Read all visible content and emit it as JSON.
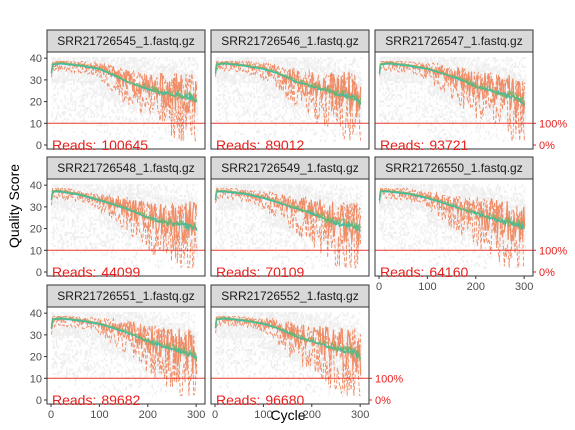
{
  "chart_data": {
    "type": "line",
    "xlabel": "Cycle",
    "ylabel": "Quality Score",
    "xlim": [
      0,
      310
    ],
    "ylim": [
      0,
      41
    ],
    "x_ticks": [
      0,
      100,
      200,
      300
    ],
    "y_ticks": [
      0,
      10,
      20,
      30,
      40
    ],
    "right_axis_labels": [
      "100%",
      "0%"
    ],
    "threshold_y": 10,
    "colors": {
      "mean": "#3CBFA2",
      "quartiles": "#F08C66",
      "median": "#7DB06A",
      "threshold": "#E8382E",
      "reads": "#E8201E",
      "heatmap": "#D9D9D9",
      "strip_bg": "#D9D9D9",
      "panel_border": "#333333"
    },
    "panels": [
      {
        "title": "SRR21726545_1.fastq.gz",
        "reads_label": "Reads:",
        "reads": "100645",
        "mean": [
          [
            1,
            33
          ],
          [
            3,
            37
          ],
          [
            20,
            37.5
          ],
          [
            60,
            36.5
          ],
          [
            100,
            35
          ],
          [
            130,
            32
          ],
          [
            170,
            28
          ],
          [
            200,
            26
          ],
          [
            230,
            24
          ],
          [
            260,
            23
          ],
          [
            290,
            22
          ],
          [
            300,
            20
          ]
        ]
      },
      {
        "title": "SRR21726546_1.fastq.gz",
        "reads_label": "Reads:",
        "reads": "89012",
        "mean": [
          [
            1,
            33
          ],
          [
            3,
            37
          ],
          [
            20,
            37.5
          ],
          [
            60,
            36.5
          ],
          [
            100,
            35
          ],
          [
            130,
            33
          ],
          [
            170,
            29
          ],
          [
            200,
            27
          ],
          [
            230,
            25
          ],
          [
            260,
            23
          ],
          [
            290,
            22
          ],
          [
            300,
            19
          ]
        ]
      },
      {
        "title": "SRR21726547_1.fastq.gz",
        "reads_label": "Reads:",
        "reads": "93721",
        "mean": [
          [
            1,
            33
          ],
          [
            3,
            37
          ],
          [
            20,
            37.5
          ],
          [
            60,
            36.5
          ],
          [
            100,
            35
          ],
          [
            130,
            33
          ],
          [
            170,
            30
          ],
          [
            200,
            27
          ],
          [
            230,
            25
          ],
          [
            260,
            23
          ],
          [
            290,
            21
          ],
          [
            300,
            19
          ]
        ]
      },
      {
        "title": "SRR21726548_1.fastq.gz",
        "reads_label": "Reads:",
        "reads": "44099",
        "mean": [
          [
            1,
            33
          ],
          [
            3,
            37
          ],
          [
            20,
            37
          ],
          [
            60,
            35.5
          ],
          [
            100,
            33
          ],
          [
            130,
            31
          ],
          [
            170,
            28
          ],
          [
            200,
            25
          ],
          [
            230,
            23
          ],
          [
            260,
            22
          ],
          [
            290,
            21
          ],
          [
            300,
            20
          ]
        ]
      },
      {
        "title": "SRR21726549_1.fastq.gz",
        "reads_label": "Reads:",
        "reads": "70109",
        "mean": [
          [
            1,
            33
          ],
          [
            3,
            37
          ],
          [
            20,
            37
          ],
          [
            60,
            36
          ],
          [
            100,
            34
          ],
          [
            130,
            32
          ],
          [
            170,
            29
          ],
          [
            200,
            27
          ],
          [
            230,
            24
          ],
          [
            260,
            22
          ],
          [
            290,
            21
          ],
          [
            300,
            20
          ]
        ]
      },
      {
        "title": "SRR21726550_1.fastq.gz",
        "reads_label": "Reads:",
        "reads": "64160",
        "mean": [
          [
            1,
            33
          ],
          [
            3,
            37
          ],
          [
            20,
            37
          ],
          [
            60,
            36
          ],
          [
            100,
            34
          ],
          [
            130,
            32
          ],
          [
            170,
            29
          ],
          [
            200,
            27
          ],
          [
            230,
            25
          ],
          [
            260,
            23
          ],
          [
            290,
            22
          ],
          [
            300,
            20
          ]
        ]
      },
      {
        "title": "SRR21726551_1.fastq.gz",
        "reads_label": "Reads:",
        "reads": "89682",
        "mean": [
          [
            1,
            33
          ],
          [
            3,
            37
          ],
          [
            20,
            37.5
          ],
          [
            60,
            36.5
          ],
          [
            100,
            35
          ],
          [
            130,
            33
          ],
          [
            170,
            30
          ],
          [
            200,
            27
          ],
          [
            230,
            25
          ],
          [
            260,
            23
          ],
          [
            290,
            21
          ],
          [
            300,
            19
          ]
        ]
      },
      {
        "title": "SRR21726552_1.fastq.gz",
        "reads_label": "Reads:",
        "reads": "96680",
        "mean": [
          [
            1,
            33
          ],
          [
            3,
            37
          ],
          [
            20,
            37.5
          ],
          [
            60,
            36.5
          ],
          [
            100,
            35
          ],
          [
            130,
            33
          ],
          [
            170,
            29
          ],
          [
            200,
            27
          ],
          [
            230,
            25
          ],
          [
            260,
            23
          ],
          [
            290,
            22
          ],
          [
            300,
            19
          ]
        ]
      }
    ]
  }
}
